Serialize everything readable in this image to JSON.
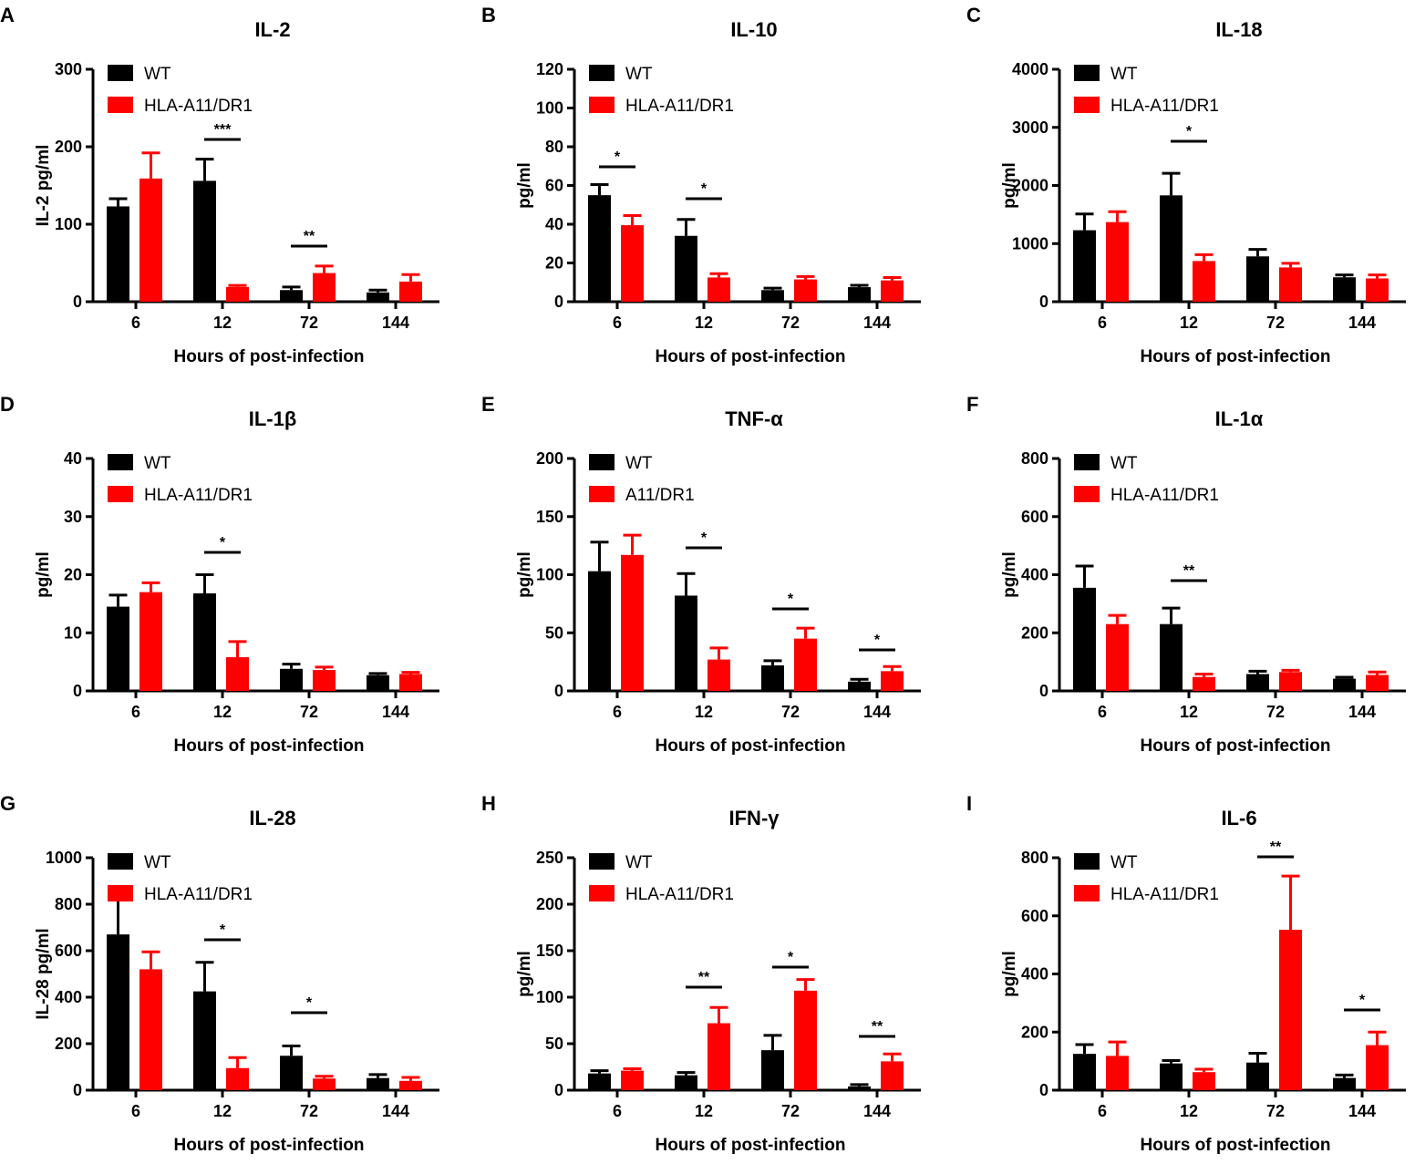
{
  "colors": {
    "wt": "#000000",
    "hla": "#ff0000",
    "axis": "#000000"
  },
  "chart_data": [
    {
      "panel": "A",
      "type": "bar",
      "title": "IL-2",
      "ylabel": "IL-2 pg/ml",
      "xlabel": "Hours of post-infection",
      "categories": [
        "6",
        "12",
        "72",
        "144"
      ],
      "ylim": [
        0,
        300
      ],
      "yticks": [
        0,
        100,
        200,
        300
      ],
      "legend": [
        "WT",
        "HLA-A11/DR1"
      ],
      "series": [
        {
          "name": "WT",
          "values": [
            123,
            156,
            15,
            12
          ],
          "errors": [
            10,
            28,
            4,
            3
          ]
        },
        {
          "name": "HLA-A11/DR1",
          "values": [
            159,
            19,
            37,
            26
          ],
          "errors": [
            33,
            2,
            9,
            9
          ]
        }
      ],
      "significance": [
        {
          "category": "12",
          "label": "***"
        },
        {
          "category": "72",
          "label": "**"
        }
      ]
    },
    {
      "panel": "B",
      "type": "bar",
      "title": "IL-10",
      "ylabel": "pg/ml",
      "xlabel": "Hours of post-infection",
      "categories": [
        "6",
        "12",
        "72",
        "144"
      ],
      "ylim": [
        0,
        120
      ],
      "yticks": [
        0,
        20,
        40,
        60,
        80,
        100,
        120
      ],
      "legend": [
        "WT",
        "HLA-A11/DR1"
      ],
      "series": [
        {
          "name": "WT",
          "values": [
            55,
            34,
            6,
            7.5
          ],
          "errors": [
            5.5,
            8.5,
            1,
            1
          ]
        },
        {
          "name": "HLA-A11/DR1",
          "values": [
            39.5,
            12.5,
            11.5,
            11
          ],
          "errors": [
            5,
            2,
            1.5,
            1.5
          ]
        }
      ],
      "significance": [
        {
          "category": "6",
          "label": "*"
        },
        {
          "category": "12",
          "label": "*"
        }
      ]
    },
    {
      "panel": "C",
      "type": "bar",
      "title": "IL-18",
      "ylabel": "pg/ml",
      "xlabel": "Hours of post-infection",
      "categories": [
        "6",
        "12",
        "72",
        "144"
      ],
      "ylim": [
        0,
        4000
      ],
      "yticks": [
        0,
        1000,
        2000,
        3000,
        4000
      ],
      "legend": [
        "WT",
        "HLA-A11/DR1"
      ],
      "series": [
        {
          "name": "WT",
          "values": [
            1230,
            1830,
            780,
            420
          ],
          "errors": [
            280,
            380,
            120,
            40
          ]
        },
        {
          "name": "HLA-A11/DR1",
          "values": [
            1370,
            700,
            590,
            400
          ],
          "errors": [
            180,
            110,
            70,
            60
          ]
        }
      ],
      "significance": [
        {
          "category": "12",
          "label": "*"
        }
      ]
    },
    {
      "panel": "D",
      "type": "bar",
      "title": "IL-1β",
      "ylabel": "pg/ml",
      "xlabel": "Hours of post-infection",
      "categories": [
        "6",
        "12",
        "72",
        "144"
      ],
      "ylim": [
        0,
        40
      ],
      "yticks": [
        0,
        10,
        20,
        30,
        40
      ],
      "legend": [
        "WT",
        "HLA-A11/DR1"
      ],
      "series": [
        {
          "name": "WT",
          "values": [
            14.5,
            16.8,
            3.8,
            2.7
          ],
          "errors": [
            2,
            3.2,
            0.8,
            0.3
          ]
        },
        {
          "name": "HLA-A11/DR1",
          "values": [
            17,
            5.8,
            3.6,
            2.9
          ],
          "errors": [
            1.6,
            2.7,
            0.5,
            0.3
          ]
        }
      ],
      "significance": [
        {
          "category": "12",
          "label": "*"
        }
      ]
    },
    {
      "panel": "E",
      "type": "bar",
      "title": "TNF-α",
      "ylabel": "pg/ml",
      "xlabel": "Hours of post-infection",
      "categories": [
        "6",
        "12",
        "72",
        "144"
      ],
      "ylim": [
        0,
        200
      ],
      "yticks": [
        0,
        50,
        100,
        150,
        200
      ],
      "legend": [
        "WT",
        "A11/DR1"
      ],
      "series": [
        {
          "name": "WT",
          "values": [
            103,
            82,
            22,
            8
          ],
          "errors": [
            25,
            19,
            4,
            2
          ]
        },
        {
          "name": "A11/DR1",
          "values": [
            117,
            27,
            45,
            17
          ],
          "errors": [
            17,
            10,
            9,
            4
          ]
        }
      ],
      "significance": [
        {
          "category": "12",
          "label": "*"
        },
        {
          "category": "72",
          "label": "*"
        },
        {
          "category": "144",
          "label": "*"
        }
      ]
    },
    {
      "panel": "F",
      "type": "bar",
      "title": "IL-1α",
      "ylabel": "pg/ml",
      "xlabel": "Hours of post-infection",
      "categories": [
        "6",
        "12",
        "72",
        "144"
      ],
      "ylim": [
        0,
        800
      ],
      "yticks": [
        0,
        200,
        400,
        600,
        800
      ],
      "legend": [
        "WT",
        "HLA-A11/DR1"
      ],
      "series": [
        {
          "name": "WT",
          "values": [
            355,
            230,
            58,
            42
          ],
          "errors": [
            75,
            55,
            10,
            5
          ]
        },
        {
          "name": "HLA-A11/DR1",
          "values": [
            230,
            48,
            65,
            55
          ],
          "errors": [
            30,
            10,
            6,
            10
          ]
        }
      ],
      "significance": [
        {
          "category": "12",
          "label": "**"
        }
      ]
    },
    {
      "panel": "G",
      "type": "bar",
      "title": "IL-28",
      "ylabel": "IL-28 pg/ml",
      "xlabel": "Hours of post-infection",
      "categories": [
        "6",
        "12",
        "72",
        "144"
      ],
      "ylim": [
        0,
        1000
      ],
      "yticks": [
        0,
        200,
        400,
        600,
        800,
        1000
      ],
      "legend": [
        "WT",
        "HLA-A11/DR1"
      ],
      "series": [
        {
          "name": "WT",
          "values": [
            670,
            425,
            148,
            52
          ],
          "errors": [
            155,
            125,
            42,
            15
          ]
        },
        {
          "name": "HLA-A11/DR1",
          "values": [
            520,
            95,
            50,
            40
          ],
          "errors": [
            75,
            45,
            10,
            15
          ]
        }
      ],
      "significance": [
        {
          "category": "12",
          "label": "*"
        },
        {
          "category": "72",
          "label": "*"
        }
      ]
    },
    {
      "panel": "H",
      "type": "bar",
      "title": "IFN-γ",
      "ylabel": "pg/ml",
      "xlabel": "Hours of post-infection",
      "categories": [
        "6",
        "12",
        "72",
        "144"
      ],
      "ylim": [
        0,
        250
      ],
      "yticks": [
        0,
        50,
        100,
        150,
        200,
        250
      ],
      "legend": [
        "WT",
        "HLA-A11/DR1"
      ],
      "series": [
        {
          "name": "WT",
          "values": [
            18,
            16,
            43,
            4
          ],
          "errors": [
            3,
            3,
            16,
            2
          ]
        },
        {
          "name": "HLA-A11/DR1",
          "values": [
            21,
            72,
            107,
            31
          ],
          "errors": [
            2,
            17,
            12,
            8
          ]
        }
      ],
      "significance": [
        {
          "category": "12",
          "label": "**"
        },
        {
          "category": "72",
          "label": "*"
        },
        {
          "category": "144",
          "label": "**"
        }
      ]
    },
    {
      "panel": "I",
      "type": "bar",
      "title": "IL-6",
      "ylabel": "pg/ml",
      "xlabel": "Hours of post-infection",
      "categories": [
        "6",
        "12",
        "72",
        "144"
      ],
      "ylim": [
        0,
        800
      ],
      "yticks": [
        0,
        200,
        400,
        600,
        800
      ],
      "legend": [
        "WT",
        "HLA-A11/DR1"
      ],
      "series": [
        {
          "name": "WT",
          "values": [
            125,
            92,
            95,
            42
          ],
          "errors": [
            32,
            10,
            32,
            10
          ]
        },
        {
          "name": "HLA-A11/DR1",
          "values": [
            118,
            62,
            552,
            155
          ],
          "errors": [
            48,
            10,
            185,
            45
          ]
        }
      ],
      "significance": [
        {
          "category": "72",
          "label": "**"
        },
        {
          "category": "144",
          "label": "*"
        }
      ]
    }
  ]
}
